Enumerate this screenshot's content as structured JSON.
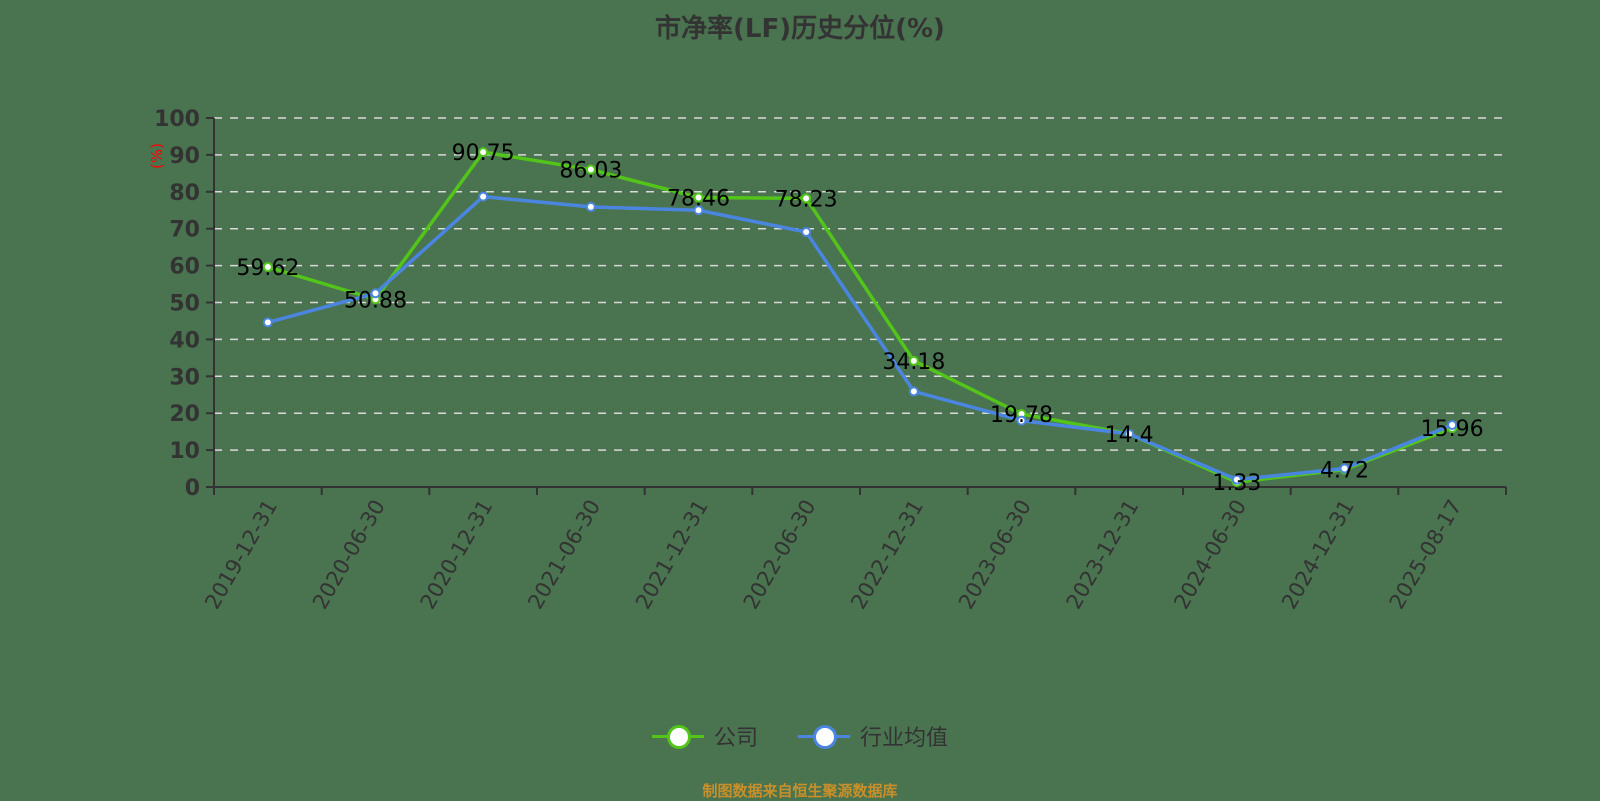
{
  "title": "市净率(LF)历史分位(%)",
  "source_note": "制图数据来自恒生聚源数据库",
  "chart_data": {
    "type": "line",
    "title": "市净率(LF)历史分位(%)",
    "xlabel": "",
    "ylabel": "(%)",
    "ylim": [
      0,
      100
    ],
    "yticks": [
      0,
      10,
      20,
      30,
      40,
      50,
      60,
      70,
      80,
      90,
      100
    ],
    "grid": true,
    "legend_position": "bottom",
    "categories": [
      "2019-12-31",
      "2020-06-30",
      "2020-12-31",
      "2021-06-30",
      "2021-12-31",
      "2022-06-30",
      "2022-12-31",
      "2023-06-30",
      "2023-12-31",
      "2024-06-30",
      "2024-12-31",
      "2025-08-17"
    ],
    "series": [
      {
        "name": "公司",
        "color": "#52c41a",
        "labeled": true,
        "values": [
          59.62,
          50.88,
          90.75,
          86.03,
          78.46,
          78.23,
          34.18,
          19.78,
          14.4,
          1.33,
          4.72,
          15.96
        ]
      },
      {
        "name": "行业均值",
        "color": "#4a86e0",
        "labeled": false,
        "values": [
          44.6,
          52.5,
          78.7,
          75.9,
          75.0,
          69.1,
          25.9,
          18.0,
          14.4,
          2.0,
          5.0,
          16.8
        ]
      }
    ]
  },
  "legend": [
    {
      "label": "公司",
      "color": "#52c41a"
    },
    {
      "label": "行业均值",
      "color": "#4a86e0"
    }
  ]
}
